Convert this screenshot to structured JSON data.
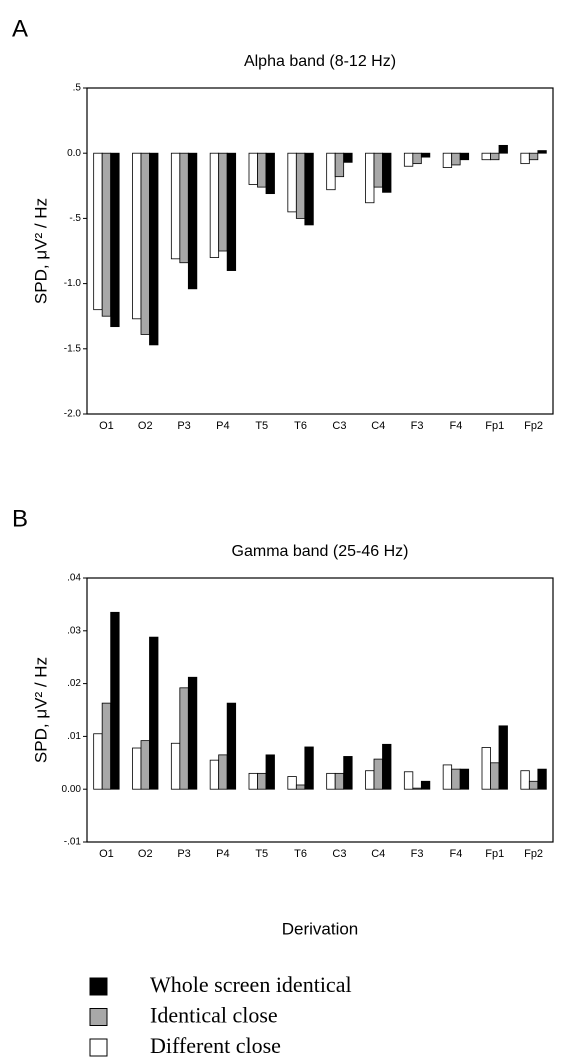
{
  "chart_data": [
    {
      "type": "bar",
      "panel": "A",
      "title": "Alpha band (8-12 Hz)",
      "y_label": "SPD, μV² / Hz",
      "categories": [
        "O1",
        "O2",
        "P3",
        "P4",
        "T5",
        "T6",
        "C3",
        "C4",
        "F3",
        "F4",
        "Fp1",
        "Fp2"
      ],
      "series": [
        {
          "color": "#ffffff",
          "values": [
            -1.2,
            -1.27,
            -0.81,
            -0.8,
            -0.24,
            -0.45,
            -0.28,
            -0.38,
            -0.1,
            -0.11,
            -0.05,
            -0.08
          ]
        },
        {
          "color": "#a8a8a8",
          "values": [
            -1.25,
            -1.39,
            -0.84,
            -0.75,
            -0.26,
            -0.5,
            -0.18,
            -0.26,
            -0.08,
            -0.09,
            -0.05,
            -0.05
          ]
        },
        {
          "color": "#000000",
          "values": [
            -1.33,
            -1.47,
            -1.04,
            -0.9,
            -0.31,
            -0.55,
            -0.07,
            -0.3,
            -0.03,
            -0.05,
            0.06,
            0.02
          ]
        }
      ],
      "ylim": [
        -2.0,
        0.5
      ],
      "yticks": [
        {
          "value": 0.5,
          "label": ".5"
        },
        {
          "value": 0,
          "label": "0.0"
        },
        {
          "value": -0.5,
          "label": "-.5"
        },
        {
          "value": -1,
          "label": "-1.0"
        },
        -1.5,
        {
          "value": -2,
          "label": "-2.0"
        }
      ]
    },
    {
      "type": "bar",
      "panel": "B",
      "title": "Gamma band (25-46 Hz)",
      "y_label": "SPD, μV² / Hz",
      "x_label": "Derivation",
      "categories": [
        "O1",
        "O2",
        "P3",
        "P4",
        "T5",
        "T6",
        "C3",
        "C4",
        "F3",
        "F4",
        "Fp1",
        "Fp2"
      ],
      "series": [
        {
          "name": "Different close",
          "color": "#ffffff",
          "values": [
            0.0105,
            0.0078,
            0.0087,
            0.0055,
            0.003,
            0.0024,
            0.003,
            0.0035,
            0.0033,
            0.0046,
            0.0079,
            0.0035
          ]
        },
        {
          "name": "Identical close",
          "color": "#a8a8a8",
          "values": [
            0.0163,
            0.0092,
            0.0192,
            0.0065,
            0.003,
            0.0008,
            0.003,
            0.0057,
            0.0002,
            0.0038,
            0.005,
            0.0015
          ]
        },
        {
          "name": "Whole screen identical",
          "color": "#000000",
          "values": [
            0.0335,
            0.0288,
            0.0212,
            0.0163,
            0.0065,
            0.008,
            0.0062,
            0.0085,
            0.0015,
            0.0038,
            0.012,
            0.0038
          ]
        }
      ],
      "ylim": [
        -0.01,
        0.04
      ],
      "yticks": [
        {
          "value": 0.04,
          "label": ".04"
        },
        {
          "value": 0.03,
          "label": ".03"
        },
        {
          "value": 0.02,
          "label": ".02"
        },
        {
          "value": 0.01,
          "label": ".01"
        },
        {
          "value": 0,
          "label": "0.00"
        },
        {
          "value": -0.01,
          "label": "-.01"
        }
      ]
    }
  ]
}
